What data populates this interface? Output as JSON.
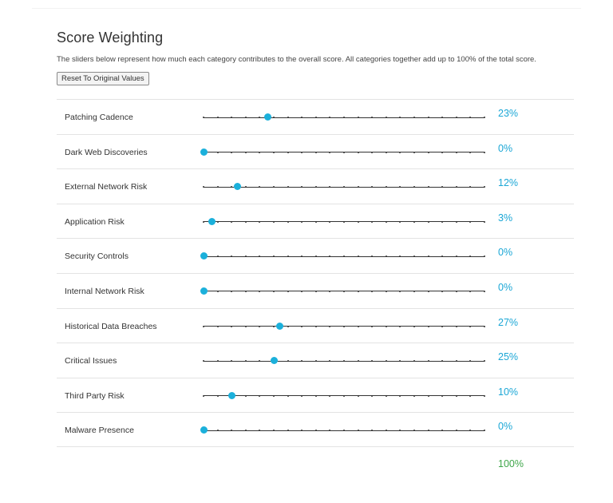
{
  "page": {
    "title": "Score Weighting",
    "description": "The sliders below represent how much each category contributes to the overall score. All categories together add up to 100% of the total score.",
    "reset_label": "Reset To Original Values",
    "total": "100%"
  },
  "categories": [
    {
      "label": "Patching Cadence",
      "value": 23,
      "value_text": "23%"
    },
    {
      "label": "Dark Web Discoveries",
      "value": 0,
      "value_text": "0%"
    },
    {
      "label": "External Network Risk",
      "value": 12,
      "value_text": "12%"
    },
    {
      "label": "Application Risk",
      "value": 3,
      "value_text": "3%"
    },
    {
      "label": "Security Controls",
      "value": 0,
      "value_text": "0%"
    },
    {
      "label": "Internal Network Risk",
      "value": 0,
      "value_text": "0%"
    },
    {
      "label": "Historical Data Breaches",
      "value": 27,
      "value_text": "27%"
    },
    {
      "label": "Critical Issues",
      "value": 25,
      "value_text": "25%"
    },
    {
      "label": "Third Party Risk",
      "value": 10,
      "value_text": "10%"
    },
    {
      "label": "Malware Presence",
      "value": 0,
      "value_text": "0%"
    }
  ],
  "slider": {
    "max": 100,
    "tick_step": 5
  },
  "colors": {
    "accent": "#1bb0db",
    "percent": "#1ba7d6",
    "total": "#3fa64a"
  }
}
